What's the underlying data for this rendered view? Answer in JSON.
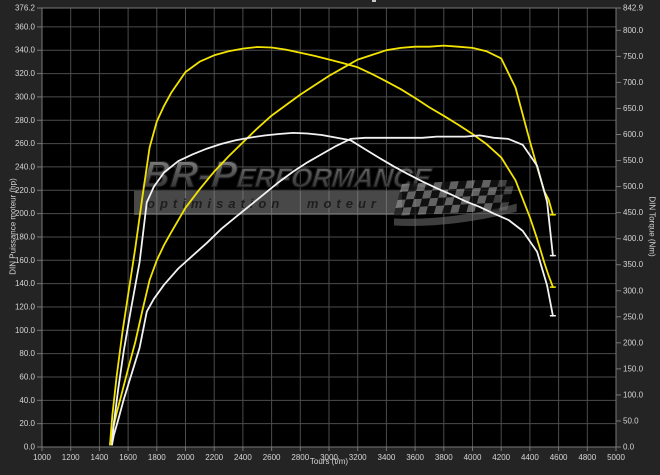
{
  "axes": {
    "x": {
      "label": "Tours (t/m)",
      "min": 1000,
      "max": 5000,
      "tick_values": [
        1000,
        1200,
        1400,
        1600,
        1800,
        2000,
        2200,
        2400,
        2600,
        2800,
        3000,
        3200,
        3400,
        3600,
        3800,
        4000,
        4200,
        4400,
        4600,
        4800,
        5000
      ],
      "tick_labels": [
        "1000",
        "1200",
        "1400",
        "1600",
        "1800",
        "2000",
        "2200",
        "2400",
        "2600",
        "2800",
        "3000",
        "3200",
        "3400",
        "3600",
        "3800",
        "4000",
        "4200",
        "4400",
        "4600",
        "4800",
        "5000"
      ]
    },
    "y_left": {
      "label": "DIN Puissance moteur (hp)",
      "min": 0,
      "max": 376.2,
      "tick_values": [
        376.2,
        360,
        340,
        320,
        300,
        280,
        260,
        240,
        220,
        200,
        180,
        160,
        140,
        120,
        100,
        80,
        60,
        40,
        20,
        0
      ],
      "tick_labels": [
        "376.2",
        "360.0",
        "340.0",
        "320.0",
        "300.0",
        "280.0",
        "260.0",
        "240.0",
        "220.0",
        "200.0",
        "180.0",
        "160.0",
        "140.0",
        "120.0",
        "100.0",
        "80.0",
        "60.0",
        "40.0",
        "20.0",
        "0.0"
      ]
    },
    "y_right": {
      "label": "DIN Torque (Nm)",
      "min": 0,
      "max": 842.9,
      "tick_values": [
        842.9,
        800,
        750,
        700,
        650,
        600,
        550,
        500,
        450,
        400,
        350,
        300,
        250,
        200,
        150,
        100,
        50,
        0
      ],
      "tick_labels": [
        "842.9",
        "800.0",
        "750.0",
        "700.0",
        "650.0",
        "600.0",
        "550.0",
        "500.0",
        "450.0",
        "400.0",
        "350.0",
        "300.0",
        "250.0",
        "200.0",
        "150.0",
        "100.0",
        "50.0",
        "0.0"
      ]
    }
  },
  "watermark": {
    "brand_prefix": "BR-P",
    "brand_rest": "erformance",
    "tagline": "optimisation moteur"
  },
  "colors": {
    "tuned": "#f2e400",
    "stock": "#f2f2f2",
    "grid": "#4c4c4c",
    "spine": "#777777",
    "plot_bg": "#000000",
    "outer_bg": "#242424",
    "tick_text": "#d5d5d5"
  },
  "chart_data": {
    "type": "line",
    "xlabel": "Tours (t/m)",
    "ylabel_left": "DIN Puissance moteur (hp)",
    "ylabel_right": "DIN Torque (Nm)",
    "x_range": [
      1000,
      5000
    ],
    "y_left_range": [
      0,
      376.2
    ],
    "y_right_range": [
      0,
      842.9
    ],
    "grid": true,
    "legend": "none",
    "series": [
      {
        "name": "tuned_torque_nm",
        "axis": "nm",
        "color": "#f2e400",
        "points": [
          [
            1474,
            5
          ],
          [
            1490,
            60
          ],
          [
            1520,
            135
          ],
          [
            1560,
            220
          ],
          [
            1600,
            292
          ],
          [
            1650,
            382
          ],
          [
            1700,
            480
          ],
          [
            1750,
            575
          ],
          [
            1800,
            625
          ],
          [
            1850,
            655
          ],
          [
            1900,
            680
          ],
          [
            2000,
            720
          ],
          [
            2100,
            740
          ],
          [
            2200,
            752
          ],
          [
            2300,
            760
          ],
          [
            2400,
            765
          ],
          [
            2500,
            768
          ],
          [
            2600,
            767
          ],
          [
            2700,
            763
          ],
          [
            2800,
            757
          ],
          [
            2900,
            751
          ],
          [
            3000,
            744
          ],
          [
            3100,
            737
          ],
          [
            3200,
            729
          ],
          [
            3300,
            716
          ],
          [
            3400,
            702
          ],
          [
            3500,
            687
          ],
          [
            3600,
            670
          ],
          [
            3700,
            652
          ],
          [
            3800,
            636
          ],
          [
            3900,
            619
          ],
          [
            4000,
            601
          ],
          [
            4100,
            581
          ],
          [
            4200,
            556
          ],
          [
            4300,
            512
          ],
          [
            4400,
            441
          ],
          [
            4450,
            400
          ],
          [
            4500,
            354
          ],
          [
            4530,
            329
          ],
          [
            4560,
            307
          ]
        ]
      },
      {
        "name": "tuned_power_hp",
        "axis": "hp",
        "color": "#f2e400",
        "points": [
          [
            1474,
            2
          ],
          [
            1490,
            13
          ],
          [
            1520,
            29
          ],
          [
            1560,
            48
          ],
          [
            1600,
            67
          ],
          [
            1650,
            90
          ],
          [
            1700,
            117
          ],
          [
            1750,
            143
          ],
          [
            1800,
            160
          ],
          [
            1850,
            173
          ],
          [
            1900,
            184
          ],
          [
            2000,
            205
          ],
          [
            2100,
            221
          ],
          [
            2200,
            236
          ],
          [
            2300,
            249
          ],
          [
            2400,
            261
          ],
          [
            2500,
            273
          ],
          [
            2600,
            284
          ],
          [
            2700,
            293
          ],
          [
            2800,
            302
          ],
          [
            2900,
            310
          ],
          [
            3000,
            318
          ],
          [
            3100,
            325
          ],
          [
            3200,
            332
          ],
          [
            3300,
            336
          ],
          [
            3400,
            340
          ],
          [
            3500,
            342
          ],
          [
            3600,
            343
          ],
          [
            3700,
            343
          ],
          [
            3800,
            344
          ],
          [
            3900,
            343
          ],
          [
            4000,
            342
          ],
          [
            4100,
            339
          ],
          [
            4200,
            333
          ],
          [
            4300,
            308
          ],
          [
            4400,
            262
          ],
          [
            4450,
            240
          ],
          [
            4500,
            219
          ],
          [
            4530,
            212
          ],
          [
            4560,
            199
          ]
        ]
      },
      {
        "name": "stock_torque_nm",
        "axis": "nm",
        "color": "#f2f2f2",
        "points": [
          [
            1488,
            5
          ],
          [
            1500,
            45
          ],
          [
            1530,
            110
          ],
          [
            1570,
            185
          ],
          [
            1620,
            265
          ],
          [
            1680,
            355
          ],
          [
            1730,
            470
          ],
          [
            1780,
            500
          ],
          [
            1850,
            527
          ],
          [
            1950,
            549
          ],
          [
            2050,
            562
          ],
          [
            2150,
            573
          ],
          [
            2250,
            582
          ],
          [
            2350,
            589
          ],
          [
            2450,
            594
          ],
          [
            2550,
            598
          ],
          [
            2650,
            601
          ],
          [
            2750,
            603
          ],
          [
            2850,
            602
          ],
          [
            2950,
            599
          ],
          [
            3050,
            594
          ],
          [
            3150,
            589
          ],
          [
            3250,
            572
          ],
          [
            3350,
            555
          ],
          [
            3450,
            539
          ],
          [
            3550,
            524
          ],
          [
            3650,
            510
          ],
          [
            3750,
            497
          ],
          [
            3850,
            485
          ],
          [
            3950,
            472
          ],
          [
            4050,
            461
          ],
          [
            4150,
            448
          ],
          [
            4250,
            436
          ],
          [
            4350,
            415
          ],
          [
            4450,
            375
          ],
          [
            4520,
            310
          ],
          [
            4560,
            252
          ]
        ]
      },
      {
        "name": "stock_power_hp",
        "axis": "hp",
        "color": "#f2f2f2",
        "points": [
          [
            1488,
            2
          ],
          [
            1500,
            10
          ],
          [
            1530,
            23
          ],
          [
            1570,
            41
          ],
          [
            1620,
            61
          ],
          [
            1680,
            85
          ],
          [
            1730,
            116
          ],
          [
            1780,
            127
          ],
          [
            1850,
            139
          ],
          [
            1950,
            153
          ],
          [
            2050,
            164
          ],
          [
            2150,
            175
          ],
          [
            2250,
            187
          ],
          [
            2350,
            197
          ],
          [
            2450,
            207
          ],
          [
            2550,
            217
          ],
          [
            2650,
            227
          ],
          [
            2750,
            236
          ],
          [
            2850,
            244
          ],
          [
            2950,
            251
          ],
          [
            3050,
            258
          ],
          [
            3150,
            264
          ],
          [
            3250,
            265
          ],
          [
            3350,
            265
          ],
          [
            3450,
            265
          ],
          [
            3550,
            265
          ],
          [
            3650,
            265
          ],
          [
            3750,
            266
          ],
          [
            3850,
            266
          ],
          [
            3950,
            266
          ],
          [
            4050,
            267
          ],
          [
            4150,
            265
          ],
          [
            4250,
            264
          ],
          [
            4350,
            259
          ],
          [
            4450,
            241
          ],
          [
            4520,
            210
          ],
          [
            4560,
            164
          ]
        ]
      }
    ]
  }
}
